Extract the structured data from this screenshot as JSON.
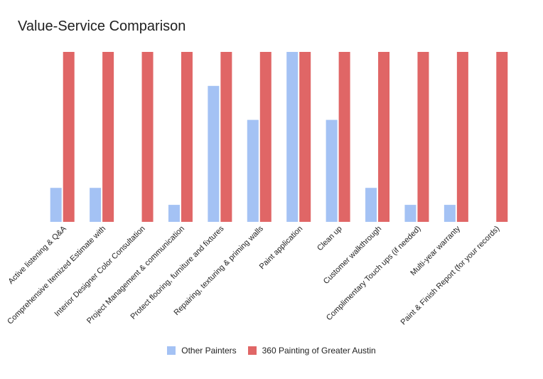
{
  "chart_data": {
    "type": "bar",
    "title": "Value-Service Comparison",
    "xlabel": "",
    "ylabel": "",
    "ylim": [
      0,
      5
    ],
    "grid": false,
    "legend_position": "bottom",
    "categories": [
      "Active listening & Q&A",
      "Comprehensive Itemized Estimate with",
      "Interior Designer Color Consultation",
      "Project Management & communication",
      "Protect flooring, furniture and fixtures",
      "Repairing, texturing & priming walls",
      "Paint application",
      "Clean up",
      "Customer walkthrough",
      "Complimentary Touch ups (if needed)",
      "Multi-year warranty",
      "Paint & Finish Report (for your records)"
    ],
    "series": [
      {
        "name": "Other Painters",
        "color": "#a4c2f4",
        "values": [
          1,
          1,
          0,
          0.5,
          4,
          3,
          5,
          3,
          1,
          0.5,
          0.5,
          0
        ]
      },
      {
        "name": "360 Painting of Greater Austin",
        "color": "#e06666",
        "values": [
          5,
          5,
          5,
          5,
          5,
          5,
          5,
          5,
          5,
          5,
          5,
          5
        ]
      }
    ]
  }
}
